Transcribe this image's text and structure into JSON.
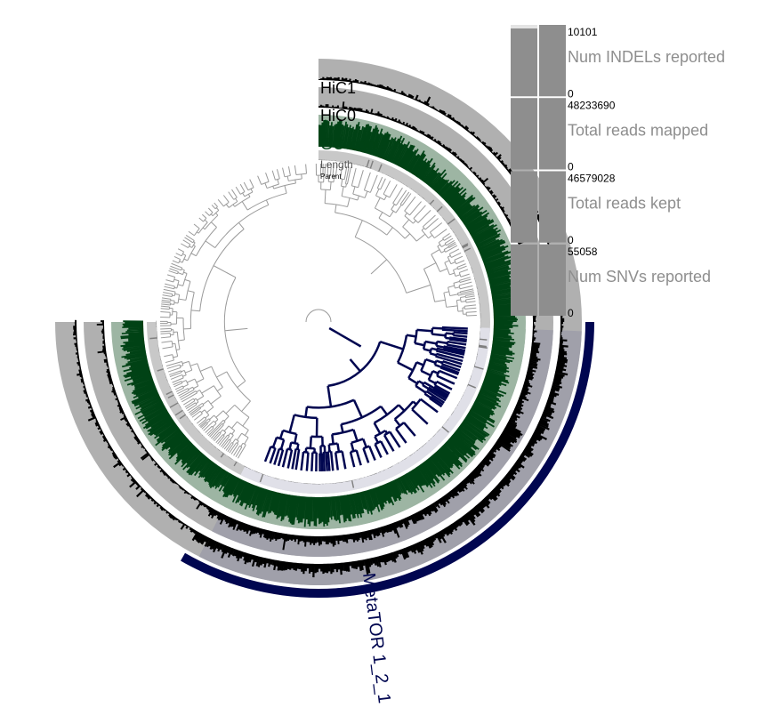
{
  "layers": [
    {
      "label": "HiC1",
      "color": "#000000"
    },
    {
      "label": "HiC0",
      "color": "#000000"
    },
    {
      "label": "GC-content",
      "color": "#004215"
    },
    {
      "label": "Length",
      "color": "#555555"
    },
    {
      "label": "Parent",
      "color": "#000000"
    }
  ],
  "bars": [
    {
      "label": "Num INDELs reported",
      "max": "10101",
      "min": "0",
      "fraction": 0.95
    },
    {
      "label": "Total reads mapped",
      "max": "48233690",
      "min": "0",
      "fraction": 1.0
    },
    {
      "label": "Total reads kept",
      "max": "46579028",
      "min": "0",
      "fraction": 1.0
    },
    {
      "label": "Num SNVs reported",
      "max": "55058",
      "min": "0",
      "fraction": 1.0
    }
  ],
  "bin": {
    "label": "MetaTOR 1_2_1",
    "color": "#000650"
  },
  "colors": {
    "track_gray": "#b0b0b0",
    "track_selected": "#a0a0aa",
    "gc_fill": "#004215",
    "gc_bg": "#9db5a3",
    "length_bg": "#c8c8c8",
    "length_selected": "#e0e0e8",
    "tree_gray": "#9a9a9a",
    "tree_selected": "#000650",
    "bar_fill": "#8e8e8e",
    "bar_bg": "#e4e4e4",
    "bar_label": "#8e8e8e"
  }
}
